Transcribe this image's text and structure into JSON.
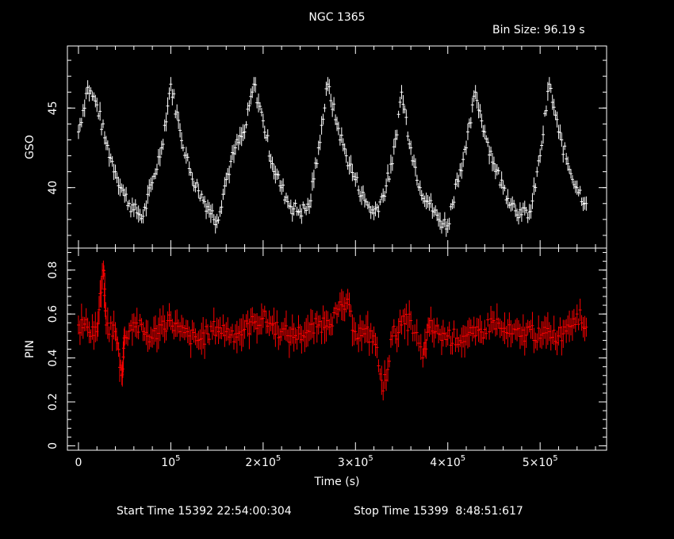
{
  "header": {
    "title": "NGC 1365",
    "bin_size": "Bin Size: 96.19 s"
  },
  "footer": {
    "start_time": "Start Time 15392 22:54:00:304",
    "stop_time": "Stop Time 15399  8:48:51:617"
  },
  "colors": {
    "background": "#000000",
    "axes": "#ffffff",
    "gso": "#ffffff",
    "pin": "#ff0000"
  },
  "chart_data": [
    {
      "type": "scatter",
      "panel": "top",
      "ylabel": "GSO",
      "ylim": [
        36.2,
        48.9
      ],
      "yticks": [
        40,
        45
      ],
      "ytick_labels": [
        "40",
        "45"
      ],
      "xlim": [
        -12000,
        572000
      ],
      "grid": false,
      "error_bars": true,
      "series": [
        {
          "color": "#ffffff",
          "x": [
            0,
            10000,
            20000,
            30000,
            40000,
            50000,
            60000,
            70000,
            80000,
            90000,
            100000,
            110000,
            120000,
            130000,
            140000,
            150000,
            160000,
            170000,
            180000,
            190000,
            200000,
            210000,
            220000,
            230000,
            240000,
            250000,
            260000,
            270000,
            280000,
            290000,
            300000,
            310000,
            320000,
            330000,
            340000,
            350000,
            360000,
            370000,
            380000,
            390000,
            400000,
            410000,
            420000,
            430000,
            440000,
            450000,
            460000,
            470000,
            480000,
            490000,
            500000,
            510000,
            520000,
            530000,
            540000,
            550000
          ],
          "y": [
            43.5,
            46.3,
            45.2,
            42.8,
            41.0,
            39.5,
            38.6,
            38.2,
            40.3,
            42.5,
            46.5,
            43.6,
            41.2,
            39.8,
            38.8,
            37.9,
            40.5,
            42.5,
            43.5,
            46.5,
            44.2,
            41.5,
            40.0,
            38.8,
            38.5,
            38.8,
            42.5,
            46.5,
            44.0,
            42.0,
            40.5,
            39.2,
            38.4,
            39.5,
            41.5,
            46.0,
            42.5,
            40.0,
            39.0,
            38.0,
            37.6,
            40.5,
            42.5,
            46.0,
            43.5,
            41.5,
            40.0,
            39.0,
            38.3,
            38.5,
            42.0,
            46.5,
            43.5,
            41.5,
            40.0,
            39.0
          ]
        }
      ]
    },
    {
      "type": "scatter",
      "panel": "bottom",
      "ylabel": "PIN",
      "xlabel": "Time (s)",
      "ylim": [
        -0.02,
        0.9
      ],
      "yticks": [
        0,
        0.2,
        0.4,
        0.6,
        0.8
      ],
      "ytick_labels": [
        "0",
        "0.2",
        "0.4",
        "0.6",
        "0.8"
      ],
      "xlim": [
        -12000,
        572000
      ],
      "xticks": [
        0,
        100000,
        200000,
        300000,
        400000,
        500000
      ],
      "xtick_labels": [
        {
          "mantissa": "0",
          "exp": ""
        },
        {
          "mantissa": "10",
          "exp": "5"
        },
        {
          "mantissa": "2×10",
          "exp": "5"
        },
        {
          "mantissa": "3×10",
          "exp": "5"
        },
        {
          "mantissa": "4×10",
          "exp": "5"
        },
        {
          "mantissa": "5×10",
          "exp": "5"
        }
      ],
      "grid": false,
      "error_bars": true,
      "series": [
        {
          "color": "#ff0000",
          "x": [
            0,
            10000,
            20000,
            27000,
            30000,
            40000,
            47000,
            50000,
            60000,
            70000,
            80000,
            90000,
            100000,
            110000,
            120000,
            130000,
            140000,
            150000,
            160000,
            170000,
            180000,
            190000,
            200000,
            210000,
            220000,
            230000,
            240000,
            250000,
            260000,
            270000,
            280000,
            290000,
            300000,
            310000,
            320000,
            330000,
            340000,
            350000,
            360000,
            373000,
            380000,
            390000,
            400000,
            410000,
            420000,
            430000,
            440000,
            450000,
            460000,
            470000,
            480000,
            490000,
            500000,
            510000,
            520000,
            530000,
            540000,
            550000
          ],
          "y": [
            0.55,
            0.54,
            0.52,
            0.8,
            0.55,
            0.52,
            0.32,
            0.5,
            0.56,
            0.52,
            0.49,
            0.55,
            0.57,
            0.52,
            0.5,
            0.48,
            0.51,
            0.54,
            0.52,
            0.51,
            0.53,
            0.56,
            0.58,
            0.55,
            0.52,
            0.5,
            0.51,
            0.52,
            0.55,
            0.57,
            0.6,
            0.65,
            0.52,
            0.51,
            0.5,
            0.25,
            0.5,
            0.55,
            0.57,
            0.4,
            0.54,
            0.51,
            0.5,
            0.49,
            0.5,
            0.5,
            0.53,
            0.57,
            0.52,
            0.51,
            0.5,
            0.53,
            0.49,
            0.52,
            0.5,
            0.55,
            0.6,
            0.54
          ]
        }
      ]
    }
  ]
}
